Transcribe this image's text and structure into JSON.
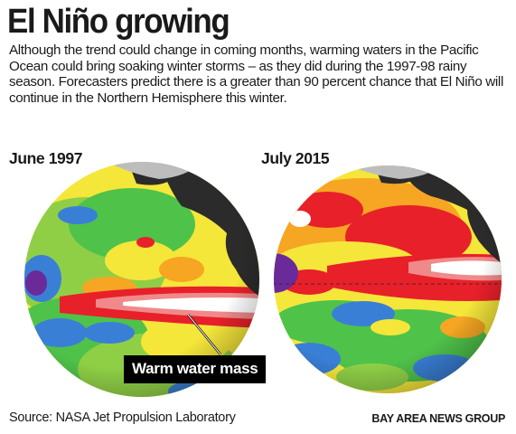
{
  "title": "El Niño growing",
  "intro": "Although the trend could change in coming months, warming waters in the Pacific Ocean could bring soaking winter storms – as they did during the 1997-98 rainy season. Forecasters predict there is a greater than 90 percent chance that El Niño will continue in the Northern Hemisphere this winter.",
  "globes": [
    {
      "label": "June 1997"
    },
    {
      "label": "July 2015"
    }
  ],
  "callout": "Warm water mass",
  "source": "Source: NASA Jet Propulsion Laboratory",
  "credit": "BAY AREA NEWS GROUP",
  "colors": {
    "warm_white": "#ffffff",
    "hot": "#e8202a",
    "warm": "#f6a623",
    "neutral": "#f5e63a",
    "mild": "#4fc24a",
    "cool": "#3a7fd6",
    "cold": "#6a2a9a",
    "land": "#2b2b2b"
  }
}
